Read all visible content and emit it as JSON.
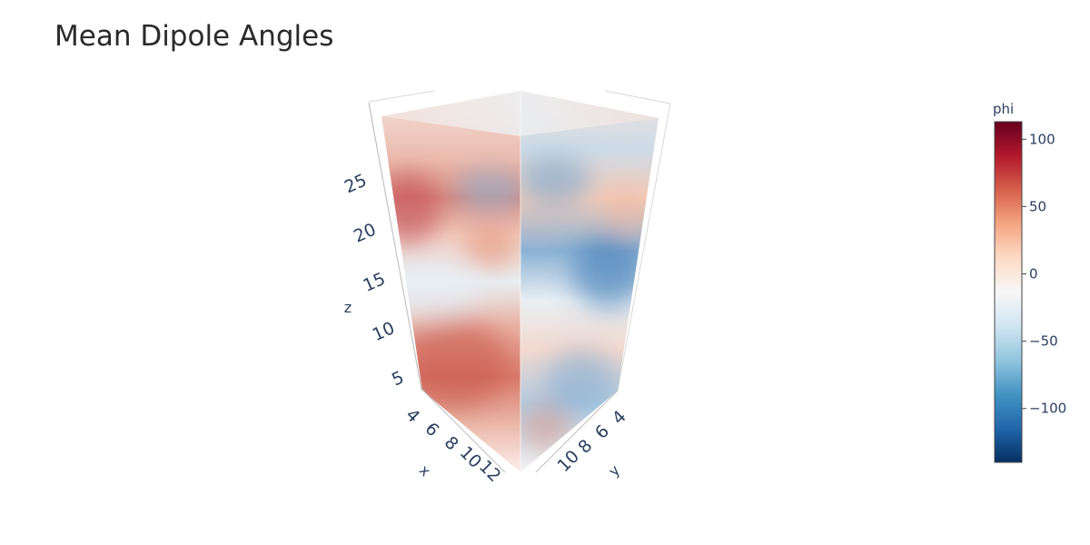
{
  "chart_data": {
    "type": "volume",
    "title": "Mean Dipole Angles",
    "axes": {
      "x": {
        "label": "x",
        "ticks": [
          "4",
          "6",
          "8",
          "10",
          "12"
        ]
      },
      "y": {
        "label": "y",
        "ticks": [
          "4",
          "6",
          "8",
          "10"
        ]
      },
      "z": {
        "label": "z",
        "ticks": [
          "5",
          "10",
          "15",
          "20",
          "25"
        ]
      }
    },
    "colorbar": {
      "title": "phi",
      "colorscale": "RdBu",
      "range": [
        -140,
        113
      ],
      "ticks": [
        {
          "value": 100,
          "label": "100"
        },
        {
          "value": 50,
          "label": "50"
        },
        {
          "value": 0,
          "label": "0"
        },
        {
          "value": -50,
          "label": "−50"
        },
        {
          "value": -100,
          "label": "−100"
        }
      ]
    },
    "colors": {
      "scale": [
        "#053061",
        "#2166ac",
        "#4393c3",
        "#92c5de",
        "#d1e5f0",
        "#f7f7f7",
        "#fddbc7",
        "#f4a582",
        "#d6604d",
        "#b2182b",
        "#67001f"
      ]
    }
  }
}
